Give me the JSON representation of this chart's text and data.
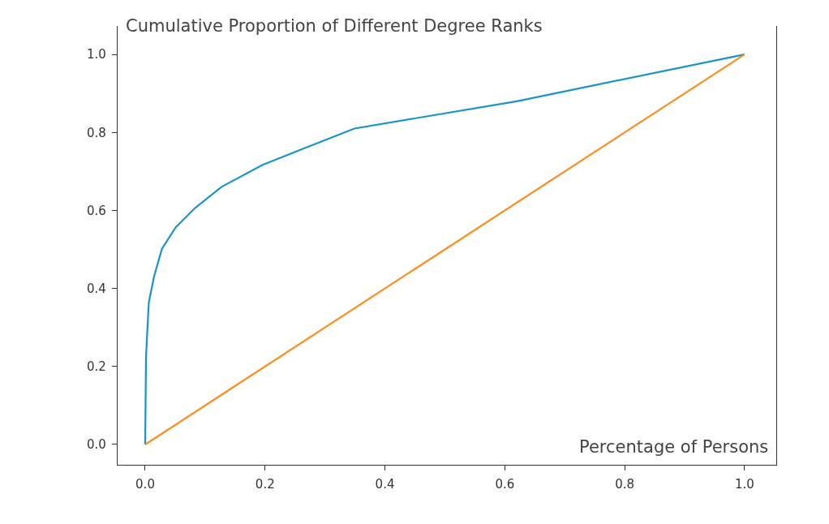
{
  "chart_data": {
    "type": "line",
    "xlabel": "Percentage of Persons",
    "ylabel": "Cumulative Proportion of Different Degree Ranks",
    "xlim": [
      -0.046,
      1.053
    ],
    "ylim": [
      -0.052,
      1.073
    ],
    "xticks": [
      {
        "value": 0,
        "label": "0.0"
      },
      {
        "value": 0.2,
        "label": "0.2"
      },
      {
        "value": 0.4,
        "label": "0.4"
      },
      {
        "value": 0.6,
        "label": "0.6"
      },
      {
        "value": 0.8,
        "label": "0.8"
      },
      {
        "value": 1,
        "label": "1.0"
      }
    ],
    "yticks": [
      {
        "value": 0,
        "label": "0.0"
      },
      {
        "value": 0.2,
        "label": "0.2"
      },
      {
        "value": 0.4,
        "label": "0.4"
      },
      {
        "value": 0.6,
        "label": "0.6"
      },
      {
        "value": 0.8,
        "label": "0.8"
      },
      {
        "value": 1,
        "label": "1.0"
      }
    ],
    "grid": false,
    "series": [
      {
        "color": "#1a94c8",
        "x": [
          0,
          0.0014,
          0.006,
          0.015,
          0.028,
          0.051,
          0.083,
          0.128,
          0.196,
          0.263,
          0.349,
          0.62,
          1
        ],
        "values": [
          0,
          0.225,
          0.364,
          0.432,
          0.502,
          0.557,
          0.606,
          0.661,
          0.717,
          0.758,
          0.81,
          0.88,
          1
        ]
      },
      {
        "color": "#ff8c1a",
        "x": [
          0,
          1
        ],
        "values": [
          0,
          1
        ]
      }
    ]
  }
}
